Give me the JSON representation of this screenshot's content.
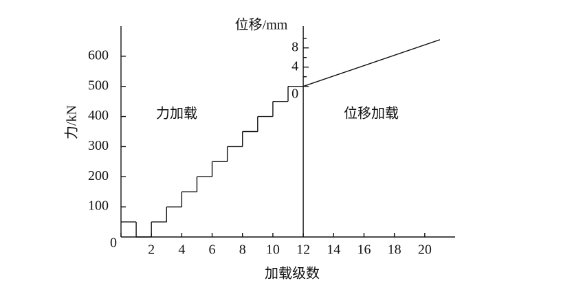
{
  "chart_data": {
    "type": "step",
    "x_label": "加载级数",
    "y_label": "力/kN",
    "y2_label": "位移/mm",
    "annotations": [
      "力加载",
      "位移加载"
    ],
    "xlim": [
      0,
      22
    ],
    "xticks": [
      0,
      2,
      4,
      6,
      8,
      10,
      12,
      14,
      16,
      18,
      20
    ],
    "ylim": [
      0,
      700
    ],
    "yticks": [
      100,
      200,
      300,
      400,
      500,
      600
    ],
    "y2lim": [
      0,
      12
    ],
    "y2ticks": [
      0,
      4,
      8
    ],
    "y2minor": [
      2,
      6,
      10
    ],
    "series": [
      {
        "name": "力",
        "color": "#111111",
        "x": [
          0,
          1,
          2,
          3,
          4,
          5,
          6,
          7,
          8,
          9,
          10,
          11
        ],
        "values": [
          50,
          0,
          50,
          100,
          150,
          200,
          250,
          300,
          350,
          400,
          450,
          500
        ]
      },
      {
        "name": "位移",
        "color": "#111111",
        "axis": "y2",
        "x": [
          12,
          21
        ],
        "values": [
          0,
          9.7
        ]
      }
    ],
    "y2_axis_at": 12
  }
}
